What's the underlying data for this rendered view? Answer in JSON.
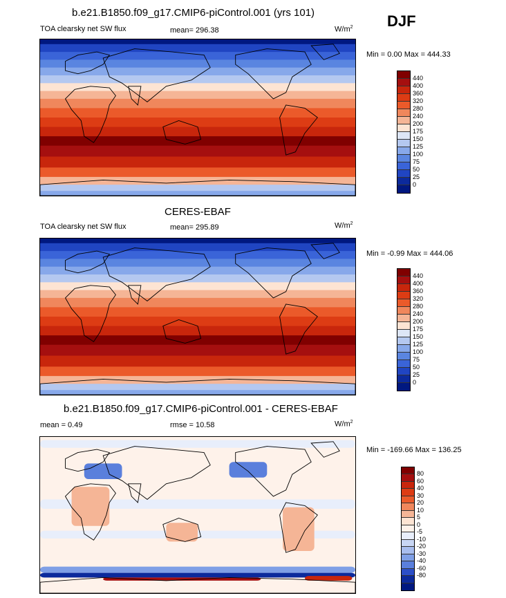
{
  "season": "DJF",
  "panels": [
    {
      "title": "b.e21.B1850.f09_g17.CMIP6-piControl.001 (yrs 101)",
      "left_label": "TOA clearsky net SW flux",
      "center_label": "mean= 296.38",
      "units": "W/m",
      "units_sup": "2",
      "minmax": "Min =   0.00 Max = 444.33",
      "colorbar_ticks": [
        "440",
        "400",
        "360",
        "320",
        "280",
        "240",
        "200",
        "175",
        "150",
        "125",
        "100",
        "75",
        "50",
        "25",
        "0"
      ]
    },
    {
      "title": "CERES-EBAF",
      "left_label": "TOA clearsky net SW flux",
      "center_label": "mean= 295.89",
      "units": "W/m",
      "units_sup": "2",
      "minmax": "Min =  -0.99 Max = 444.06",
      "colorbar_ticks": [
        "440",
        "400",
        "360",
        "320",
        "280",
        "240",
        "200",
        "175",
        "150",
        "125",
        "100",
        "75",
        "50",
        "25",
        "0"
      ]
    },
    {
      "title": "b.e21.B1850.f09_g17.CMIP6-piControl.001 - CERES-EBAF",
      "left_label": "mean =   0.49",
      "center_label": "rmse =  10.58",
      "units": "W/m",
      "units_sup": "2",
      "minmax": "Min = -169.66 Max = 136.25",
      "colorbar_ticks": [
        "80",
        "60",
        "40",
        "30",
        "20",
        "10",
        "5",
        "0",
        "-5",
        "-10",
        "-20",
        "-30",
        "-40",
        "-60",
        "-80"
      ]
    }
  ],
  "colors": {
    "abs_scale": [
      "#800000",
      "#a50f0f",
      "#c8260c",
      "#dd3c14",
      "#eb5a2a",
      "#f0875c",
      "#f5b596",
      "#fde4d3",
      "#dde6f6",
      "#b4c8f0",
      "#87a8ea",
      "#5a85e0",
      "#3a64d8",
      "#2045c2",
      "#0c2a9c",
      "#001880"
    ],
    "diff_scale": [
      "#800000",
      "#a50f0f",
      "#c8260c",
      "#dd3c14",
      "#eb5a2a",
      "#f0875c",
      "#f5b596",
      "#fde4d3",
      "#fef2ea",
      "#e8eefb",
      "#c8d6f4",
      "#a8bdee",
      "#7f9fe6",
      "#5a7fdc",
      "#2c4fc8",
      "#0c2a9c",
      "#001880"
    ]
  }
}
